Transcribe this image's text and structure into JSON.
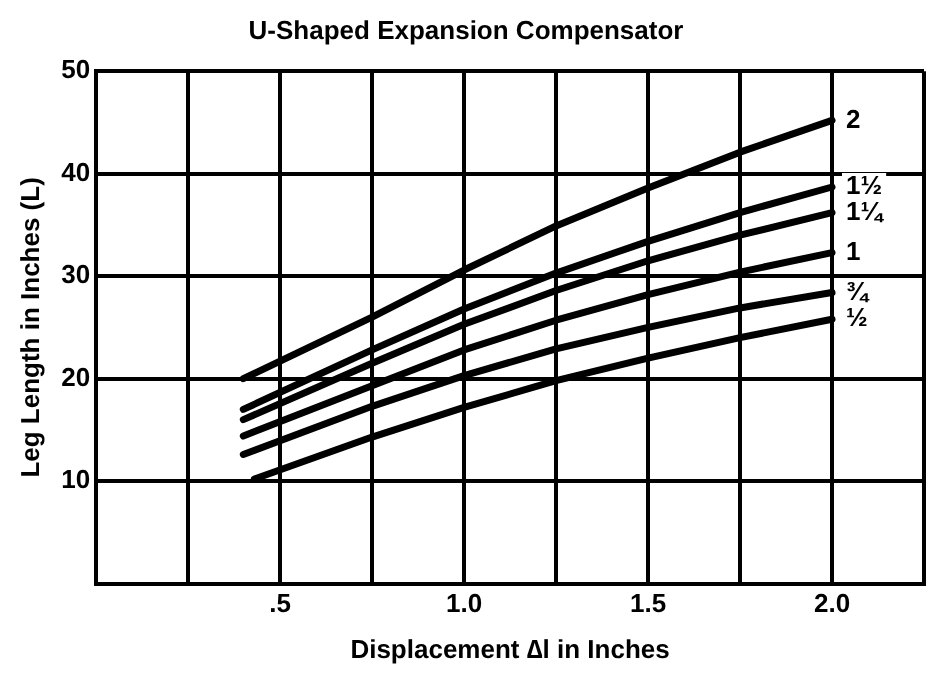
{
  "chart_data": {
    "type": "line",
    "title": "U-Shaped Expansion Compensator",
    "xlabel": "Displacement ∆l in Inches",
    "ylabel": "Leg Length in Inches (L)",
    "xlim": [
      0,
      2.25
    ],
    "xticks": [
      {
        "value": 0,
        "label": null
      },
      {
        "value": 0.25,
        "label": null
      },
      {
        "value": 0.5,
        "label": ".5"
      },
      {
        "value": 0.75,
        "label": null
      },
      {
        "value": 1,
        "label": "1.0"
      },
      {
        "value": 1.25,
        "label": null
      },
      1.5,
      {
        "value": 1.75,
        "label": null
      },
      {
        "value": 2,
        "label": "2.0"
      },
      {
        "value": 2.25,
        "label": null
      }
    ],
    "ylim": [
      0,
      50
    ],
    "yticks": [
      {
        "value": 0,
        "label": null
      },
      10,
      20,
      30,
      40,
      50
    ],
    "grid": true,
    "legend": false,
    "marker": "none",
    "line_style": "solid",
    "series": [
      {
        "name": "2",
        "color": "#000000",
        "x": [
          0.4,
          0.75,
          1.0,
          1.25,
          1.5,
          1.75,
          2.0
        ],
        "values": [
          20.0,
          26.0,
          30.6,
          34.9,
          38.6,
          42.1,
          45.2
        ]
      },
      {
        "name": "1½",
        "color": "#000000",
        "x": [
          0.4,
          0.75,
          1.0,
          1.25,
          1.5,
          1.75,
          2.0
        ],
        "values": [
          17.0,
          22.8,
          26.8,
          30.3,
          33.4,
          36.2,
          38.7
        ]
      },
      {
        "name": "1¼",
        "color": "#000000",
        "x": [
          0.4,
          0.75,
          1.0,
          1.25,
          1.5,
          1.75,
          2.0
        ],
        "values": [
          16.0,
          21.5,
          25.3,
          28.6,
          31.5,
          34.0,
          36.2
        ]
      },
      {
        "name": "1",
        "color": "#000000",
        "x": [
          0.4,
          0.75,
          1.0,
          1.25,
          1.5,
          1.75,
          2.0
        ],
        "values": [
          14.4,
          19.3,
          22.8,
          25.7,
          28.2,
          30.4,
          32.3
        ]
      },
      {
        "name": "¾",
        "color": "#000000",
        "x": [
          0.4,
          0.75,
          1.0,
          1.25,
          1.5,
          1.75,
          2.0
        ],
        "values": [
          12.6,
          17.3,
          20.3,
          22.9,
          25.0,
          26.9,
          28.4
        ]
      },
      {
        "name": "½",
        "color": "#000000",
        "x": [
          0.43,
          0.75,
          1.0,
          1.25,
          1.5,
          1.75,
          2.0
        ],
        "values": [
          10.2,
          14.3,
          17.2,
          19.8,
          22.0,
          24.0,
          25.8
        ]
      }
    ]
  }
}
